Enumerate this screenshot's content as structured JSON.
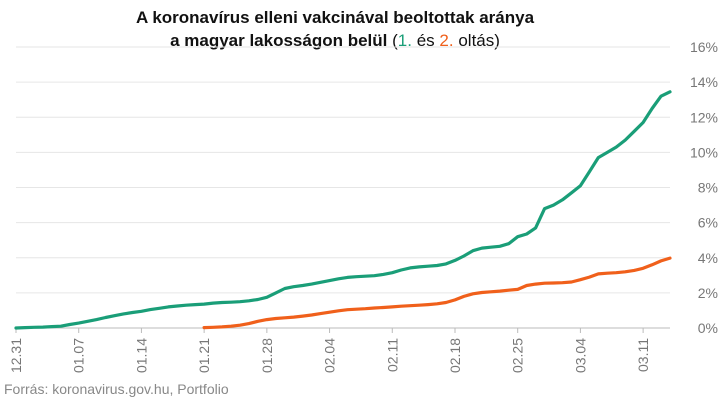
{
  "chart_data": {
    "type": "line",
    "title_line1": "A koronavírus elleni vakcinával beoltottak aránya",
    "title_line2_prefix": "a magyar lakosságon belül",
    "title_paren_open": "(",
    "title_series1": "1.",
    "title_and": "és",
    "title_series2": "2.",
    "title_suffix": "oltás)",
    "source": "Forrás: koronavirus.gov.hu, Portfolio",
    "x_start": "2020-12-31",
    "x_end": "2021-03-14",
    "x_ticks": [
      {
        "date": "2020-12-31",
        "label": "12.31"
      },
      {
        "date": "2021-01-07",
        "label": "01.07"
      },
      {
        "date": "2021-01-14",
        "label": "01.14"
      },
      {
        "date": "2021-01-21",
        "label": "01.21"
      },
      {
        "date": "2021-01-28",
        "label": "01.28"
      },
      {
        "date": "2021-02-04",
        "label": "02.04"
      },
      {
        "date": "2021-02-11",
        "label": "02.11"
      },
      {
        "date": "2021-02-18",
        "label": "02.18"
      },
      {
        "date": "2021-02-25",
        "label": "02.25"
      },
      {
        "date": "2021-03-04",
        "label": "03.04"
      },
      {
        "date": "2021-03-11",
        "label": "03.11"
      }
    ],
    "y_ticks": [
      "0%",
      "2%",
      "4%",
      "6%",
      "8%",
      "10%",
      "12%",
      "14%",
      "16%"
    ],
    "ylim": [
      0,
      16
    ],
    "grid": true,
    "series": [
      {
        "color": "#1a9e78",
        "points": [
          [
            "2020-12-31",
            0.0
          ],
          [
            "2021-01-01",
            0.02
          ],
          [
            "2021-01-02",
            0.04
          ],
          [
            "2021-01-03",
            0.05
          ],
          [
            "2021-01-04",
            0.08
          ],
          [
            "2021-01-05",
            0.1
          ],
          [
            "2021-01-06",
            0.2
          ],
          [
            "2021-01-07",
            0.28
          ],
          [
            "2021-01-08",
            0.38
          ],
          [
            "2021-01-09",
            0.48
          ],
          [
            "2021-01-10",
            0.6
          ],
          [
            "2021-01-11",
            0.7
          ],
          [
            "2021-01-12",
            0.8
          ],
          [
            "2021-01-13",
            0.88
          ],
          [
            "2021-01-14",
            0.95
          ],
          [
            "2021-01-15",
            1.05
          ],
          [
            "2021-01-16",
            1.12
          ],
          [
            "2021-01-17",
            1.2
          ],
          [
            "2021-01-18",
            1.25
          ],
          [
            "2021-01-19",
            1.3
          ],
          [
            "2021-01-20",
            1.33
          ],
          [
            "2021-01-21",
            1.36
          ],
          [
            "2021-01-22",
            1.42
          ],
          [
            "2021-01-23",
            1.45
          ],
          [
            "2021-01-24",
            1.47
          ],
          [
            "2021-01-25",
            1.5
          ],
          [
            "2021-01-26",
            1.55
          ],
          [
            "2021-01-27",
            1.62
          ],
          [
            "2021-01-28",
            1.75
          ],
          [
            "2021-01-29",
            2.0
          ],
          [
            "2021-01-30",
            2.25
          ],
          [
            "2021-01-31",
            2.35
          ],
          [
            "2021-02-01",
            2.42
          ],
          [
            "2021-02-02",
            2.5
          ],
          [
            "2021-02-03",
            2.6
          ],
          [
            "2021-02-04",
            2.7
          ],
          [
            "2021-02-05",
            2.8
          ],
          [
            "2021-02-06",
            2.88
          ],
          [
            "2021-02-07",
            2.92
          ],
          [
            "2021-02-08",
            2.95
          ],
          [
            "2021-02-09",
            2.98
          ],
          [
            "2021-02-10",
            3.05
          ],
          [
            "2021-02-11",
            3.15
          ],
          [
            "2021-02-12",
            3.3
          ],
          [
            "2021-02-13",
            3.42
          ],
          [
            "2021-02-14",
            3.48
          ],
          [
            "2021-02-15",
            3.52
          ],
          [
            "2021-02-16",
            3.56
          ],
          [
            "2021-02-17",
            3.65
          ],
          [
            "2021-02-18",
            3.85
          ],
          [
            "2021-02-19",
            4.1
          ],
          [
            "2021-02-20",
            4.4
          ],
          [
            "2021-02-21",
            4.55
          ],
          [
            "2021-02-22",
            4.6
          ],
          [
            "2021-02-23",
            4.65
          ],
          [
            "2021-02-24",
            4.8
          ],
          [
            "2021-02-25",
            5.2
          ],
          [
            "2021-02-26",
            5.35
          ],
          [
            "2021-02-27",
            5.7
          ],
          [
            "2021-02-28",
            6.8
          ],
          [
            "2021-03-01",
            7.0
          ],
          [
            "2021-03-02",
            7.3
          ],
          [
            "2021-03-03",
            7.7
          ],
          [
            "2021-03-04",
            8.1
          ],
          [
            "2021-03-05",
            8.9
          ],
          [
            "2021-03-06",
            9.7
          ],
          [
            "2021-03-07",
            10.0
          ],
          [
            "2021-03-08",
            10.3
          ],
          [
            "2021-03-09",
            10.7
          ],
          [
            "2021-03-10",
            11.2
          ],
          [
            "2021-03-11",
            11.7
          ],
          [
            "2021-03-12",
            12.5
          ],
          [
            "2021-03-13",
            13.2
          ],
          [
            "2021-03-14",
            13.45
          ]
        ]
      },
      {
        "color": "#f0601b",
        "points": [
          [
            "2021-01-21",
            0.02
          ],
          [
            "2021-01-22",
            0.04
          ],
          [
            "2021-01-23",
            0.06
          ],
          [
            "2021-01-24",
            0.1
          ],
          [
            "2021-01-25",
            0.16
          ],
          [
            "2021-01-26",
            0.25
          ],
          [
            "2021-01-27",
            0.38
          ],
          [
            "2021-01-28",
            0.48
          ],
          [
            "2021-01-29",
            0.54
          ],
          [
            "2021-01-30",
            0.58
          ],
          [
            "2021-01-31",
            0.62
          ],
          [
            "2021-02-01",
            0.68
          ],
          [
            "2021-02-02",
            0.74
          ],
          [
            "2021-02-03",
            0.82
          ],
          [
            "2021-02-04",
            0.9
          ],
          [
            "2021-02-05",
            0.98
          ],
          [
            "2021-02-06",
            1.04
          ],
          [
            "2021-02-07",
            1.07
          ],
          [
            "2021-02-08",
            1.1
          ],
          [
            "2021-02-09",
            1.14
          ],
          [
            "2021-02-10",
            1.17
          ],
          [
            "2021-02-11",
            1.2
          ],
          [
            "2021-02-12",
            1.24
          ],
          [
            "2021-02-13",
            1.27
          ],
          [
            "2021-02-14",
            1.3
          ],
          [
            "2021-02-15",
            1.33
          ],
          [
            "2021-02-16",
            1.38
          ],
          [
            "2021-02-17",
            1.45
          ],
          [
            "2021-02-18",
            1.6
          ],
          [
            "2021-02-19",
            1.8
          ],
          [
            "2021-02-20",
            1.95
          ],
          [
            "2021-02-21",
            2.02
          ],
          [
            "2021-02-22",
            2.06
          ],
          [
            "2021-02-23",
            2.1
          ],
          [
            "2021-02-24",
            2.15
          ],
          [
            "2021-02-25",
            2.2
          ],
          [
            "2021-02-26",
            2.42
          ],
          [
            "2021-02-27",
            2.5
          ],
          [
            "2021-02-28",
            2.55
          ],
          [
            "2021-03-01",
            2.56
          ],
          [
            "2021-03-02",
            2.58
          ],
          [
            "2021-03-03",
            2.62
          ],
          [
            "2021-03-04",
            2.75
          ],
          [
            "2021-03-05",
            2.9
          ],
          [
            "2021-03-06",
            3.08
          ],
          [
            "2021-03-07",
            3.12
          ],
          [
            "2021-03-08",
            3.15
          ],
          [
            "2021-03-09",
            3.2
          ],
          [
            "2021-03-10",
            3.28
          ],
          [
            "2021-03-11",
            3.4
          ],
          [
            "2021-03-12",
            3.6
          ],
          [
            "2021-03-13",
            3.82
          ],
          [
            "2021-03-14",
            3.98
          ]
        ]
      }
    ]
  }
}
